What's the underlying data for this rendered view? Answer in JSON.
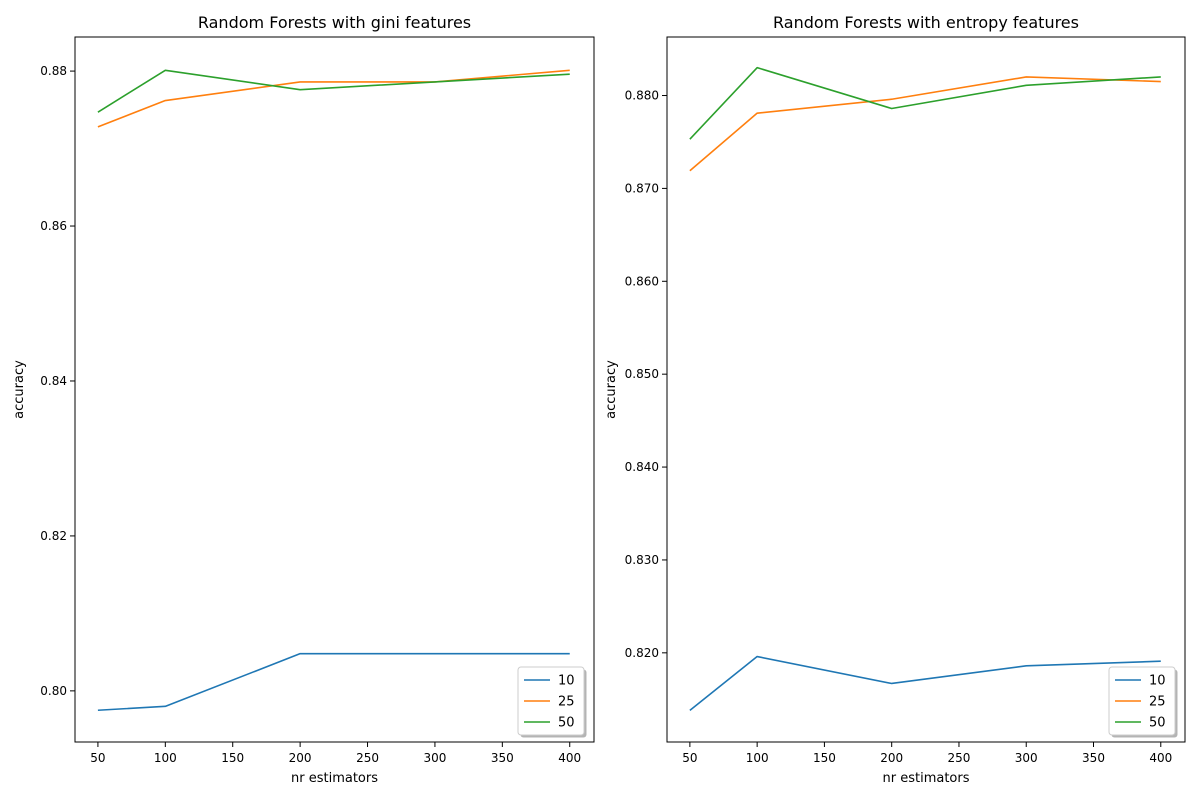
{
  "chart_data": [
    {
      "type": "line",
      "title": "Random Forests with gini features",
      "xlabel": "nr estimators",
      "ylabel": "accuracy",
      "x": [
        50,
        100,
        200,
        300,
        400
      ],
      "xlim": [
        33,
        418
      ],
      "ylim": [
        0.7934,
        0.8844
      ],
      "xticks": [
        50,
        100,
        150,
        200,
        250,
        300,
        350,
        400
      ],
      "yticks": [
        0.8,
        0.82,
        0.84,
        0.86,
        0.88
      ],
      "ytick_labels": [
        "0.80",
        "0.82",
        "0.84",
        "0.86",
        "0.88"
      ],
      "legend_position": "lower-right",
      "grid": false,
      "series": [
        {
          "name": "10",
          "color": "#1f77b4",
          "values": [
            0.7975,
            0.798,
            0.8048,
            0.8048,
            0.8048
          ]
        },
        {
          "name": "25",
          "color": "#ff7f0e",
          "values": [
            0.8728,
            0.8762,
            0.8786,
            0.8786,
            0.8801
          ]
        },
        {
          "name": "50",
          "color": "#2ca02c",
          "values": [
            0.8747,
            0.8801,
            0.8776,
            0.8786,
            0.8796
          ]
        }
      ]
    },
    {
      "type": "line",
      "title": "Random Forests with entropy features",
      "xlabel": "nr estimators",
      "ylabel": "accuracy",
      "x": [
        50,
        100,
        200,
        300,
        400
      ],
      "xlim": [
        33,
        418
      ],
      "ylim": [
        0.8104,
        0.8863
      ],
      "xticks": [
        50,
        100,
        150,
        200,
        250,
        300,
        350,
        400
      ],
      "yticks": [
        0.82,
        0.83,
        0.84,
        0.85,
        0.86,
        0.87,
        0.88
      ],
      "ytick_labels": [
        "0.820",
        "0.830",
        "0.840",
        "0.850",
        "0.860",
        "0.870",
        "0.880"
      ],
      "legend_position": "lower-right",
      "grid": false,
      "series": [
        {
          "name": "10",
          "color": "#1f77b4",
          "values": [
            0.8138,
            0.8196,
            0.8167,
            0.8186,
            0.8191
          ]
        },
        {
          "name": "25",
          "color": "#ff7f0e",
          "values": [
            0.8719,
            0.8781,
            0.8796,
            0.882,
            0.8815
          ]
        },
        {
          "name": "50",
          "color": "#2ca02c",
          "values": [
            0.8753,
            0.883,
            0.8786,
            0.8811,
            0.882
          ]
        }
      ]
    }
  ]
}
